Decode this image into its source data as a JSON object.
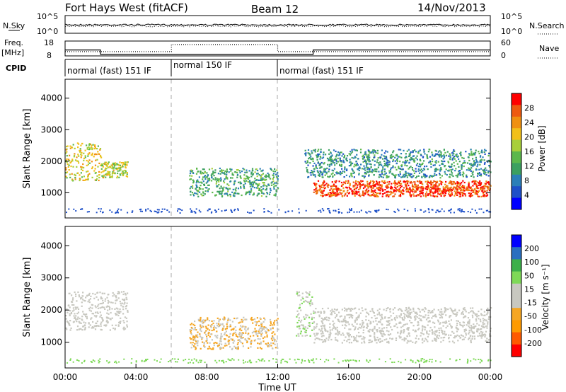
{
  "header": {
    "station": "Fort Hays West (fitACF)",
    "beam": "Beam 12",
    "date": "14/Nov/2013"
  },
  "top_panels": {
    "nsky_label": "N.Sky",
    "nsky_ticks": [
      "10^5",
      "10^0"
    ],
    "nsearch_label": "N.Search",
    "nsearch_ticks": [
      "10^5",
      "10^0"
    ],
    "freq_label": "Freq.",
    "freq_unit": "[MHz]",
    "freq_ticks": [
      "18",
      "8"
    ],
    "nave_label": "Nave",
    "nave_ticks": [
      "60",
      "0"
    ],
    "cpid_label": "CPID",
    "cpid_segments": [
      {
        "label": "normal (fast) 151 IF",
        "start_hr": 0,
        "end_hr": 6
      },
      {
        "label": "normal 150 IF",
        "start_hr": 6,
        "end_hr": 12
      },
      {
        "label": "normal (fast) 151 IF",
        "start_hr": 12,
        "end_hr": 24
      }
    ],
    "freq_steps": [
      {
        "start_hr": 0,
        "end_hr": 2,
        "value": 12
      },
      {
        "start_hr": 2,
        "end_hr": 14,
        "value": 9
      },
      {
        "start_hr": 14,
        "end_hr": 24,
        "value": 12
      }
    ]
  },
  "chart_data": [
    {
      "type": "heatmap",
      "title": "",
      "xlabel": "",
      "ylabel": "Slant Range [km]",
      "xlim": [
        0,
        24
      ],
      "ylim": [
        200,
        4600
      ],
      "yticks": [
        1000,
        2000,
        3000,
        4000
      ],
      "colorbar": {
        "label": "Power [dB]",
        "ticks": [
          "28",
          "24",
          "20",
          "16",
          "12",
          "8",
          "4"
        ],
        "range": [
          0,
          32
        ],
        "colors": [
          "#0000ff",
          "#1e50c8",
          "#2b7fb8",
          "#3ca060",
          "#5cb84c",
          "#a8cf3a",
          "#f2c01a",
          "#f09010",
          "#ee5a10",
          "#ff0000"
        ]
      },
      "features": [
        {
          "name": "morning patch 1",
          "x": [
            0.0,
            2.0
          ],
          "y": [
            1400,
            2600
          ],
          "power": 20
        },
        {
          "name": "morning patch 2",
          "x": [
            2.0,
            3.5
          ],
          "y": [
            1500,
            2000
          ],
          "power": 18
        },
        {
          "name": "rising band",
          "x": [
            7.0,
            12.0
          ],
          "y": [
            900,
            1800
          ],
          "power": 12
        },
        {
          "name": "afternoon strong band",
          "x": [
            14.0,
            24.0
          ],
          "y": [
            900,
            1400
          ],
          "power": 28
        },
        {
          "name": "afternoon upper band",
          "x": [
            13.5,
            24.0
          ],
          "y": [
            1500,
            2400
          ],
          "power": 10
        }
      ]
    },
    {
      "type": "heatmap",
      "title": "",
      "xlabel": "Time UT",
      "ylabel": "Slant Range [km]",
      "xlim": [
        0,
        24
      ],
      "ylim": [
        200,
        4600
      ],
      "xticks": [
        "00:00",
        "04:00",
        "08:00",
        "12:00",
        "16:00",
        "20:00",
        "00:00"
      ],
      "yticks": [
        1000,
        2000,
        3000,
        4000
      ],
      "colorbar": {
        "label": "Velocity [m s⁻¹]",
        "ticks": [
          "200",
          "100",
          "50",
          "15",
          "-15",
          "-50",
          "-100",
          "-200"
        ],
        "range": [
          -250,
          250
        ],
        "colors": [
          "#ff0000",
          "#ff5a00",
          "#ff9a00",
          "#f5a623",
          "#c8c8c0",
          "#c8c8c0",
          "#7ed957",
          "#3cb04a",
          "#2a6fc0",
          "#0000ff"
        ]
      },
      "features": [
        {
          "name": "morning patch",
          "x": [
            0.0,
            3.5
          ],
          "y": [
            1400,
            2600
          ],
          "velocity": 0
        },
        {
          "name": "rising band",
          "x": [
            7.0,
            12.0
          ],
          "y": [
            800,
            1800
          ],
          "velocity": -50
        },
        {
          "name": "surge",
          "x": [
            13.0,
            14.0
          ],
          "y": [
            1200,
            2600
          ],
          "velocity": 50
        },
        {
          "name": "afternoon band",
          "x": [
            14.0,
            24.0
          ],
          "y": [
            1000,
            2100
          ],
          "velocity": 0
        }
      ]
    }
  ]
}
